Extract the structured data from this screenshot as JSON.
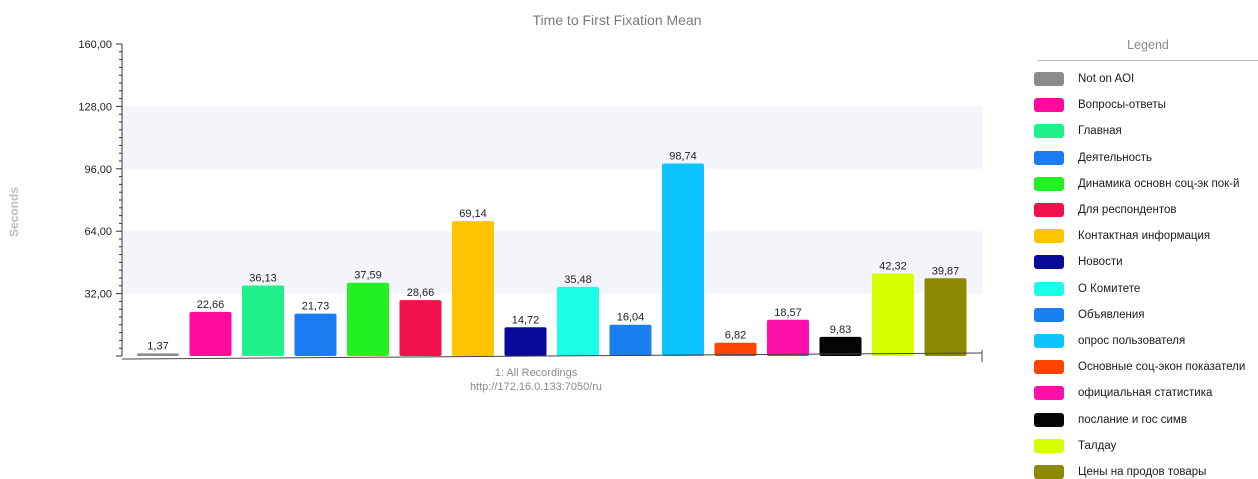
{
  "chart_data": {
    "type": "bar",
    "title": "Time to First Fixation Mean",
    "ylabel": "Seconds",
    "xlabel": "1: All Recordings",
    "xlabel_sub": "http://172.16.0.133:7050/ru",
    "ylim": [
      0,
      160
    ],
    "yticks": [
      "160,00",
      "128,00",
      "96,00",
      "64,00",
      "32,00"
    ],
    "grid": "alternating horizontal bands",
    "legend_position": "right",
    "legend_title": "Legend",
    "series": [
      {
        "name": "Not on AOI",
        "value": 1.37,
        "label": "1,37",
        "color": "#8c8c8c"
      },
      {
        "name": "Вопросы-ответы",
        "value": 22.66,
        "label": "22,66",
        "color": "#ff0a9c"
      },
      {
        "name": "Главная",
        "value": 36.13,
        "label": "36,13",
        "color": "#1ef08a"
      },
      {
        "name": "Деятельность",
        "value": 21.73,
        "label": "21,73",
        "color": "#1a7cf0"
      },
      {
        "name": "Динамика основн соц-эк пок-й",
        "value": 37.59,
        "label": "37,59",
        "color": "#22f022"
      },
      {
        "name": "Для респондентов",
        "value": 28.66,
        "label": "28,66",
        "color": "#f0104a"
      },
      {
        "name": "Контактная информация",
        "value": 69.14,
        "label": "69,14",
        "color": "#ffc400"
      },
      {
        "name": "Новости",
        "value": 14.72,
        "label": "14,72",
        "color": "#0a0a9a"
      },
      {
        "name": "О Комитете",
        "value": 35.48,
        "label": "35,48",
        "color": "#1affe8"
      },
      {
        "name": "Объявления",
        "value": 16.04,
        "label": "16,04",
        "color": "#1a80f0"
      },
      {
        "name": "опрос пользователя",
        "value": 98.74,
        "label": "98,74",
        "color": "#0cc4ff"
      },
      {
        "name": "Основные соц-экон показатели",
        "value": 6.82,
        "label": "6,82",
        "color": "#ff4400"
      },
      {
        "name": "официальная статистика",
        "value": 18.57,
        "label": "18,57",
        "color": "#ff10a8"
      },
      {
        "name": "послание и гос симв",
        "value": 9.83,
        "label": "9,83",
        "color": "#050505"
      },
      {
        "name": "Талдау",
        "value": 42.32,
        "label": "42,32",
        "color": "#d8ff00"
      },
      {
        "name": "Цены на продов товары",
        "value": 39.87,
        "label": "39,87",
        "color": "#8c8a00"
      }
    ]
  }
}
